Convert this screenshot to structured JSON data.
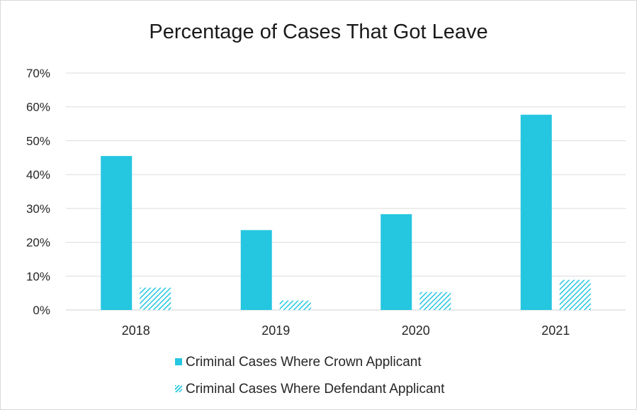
{
  "chart_data": {
    "type": "bar",
    "title": "Percentage of Cases That Got Leave",
    "categories": [
      "2018",
      "2019",
      "2020",
      "2021"
    ],
    "series": [
      {
        "name": "Criminal Cases Where Crown Applicant",
        "values": [
          45.5,
          23.6,
          28.3,
          57.7
        ],
        "style": "solid",
        "color": "#25c6e0"
      },
      {
        "name": "Criminal Cases Where Defendant Applicant",
        "values": [
          6.6,
          2.8,
          5.3,
          8.9
        ],
        "style": "hatched",
        "color": "#25c6e0"
      }
    ],
    "ylim": [
      0,
      70
    ],
    "yticks": [
      "0%",
      "10%",
      "20%",
      "30%",
      "40%",
      "50%",
      "60%",
      "70%"
    ],
    "xlabel": "",
    "ylabel": "",
    "grid": true,
    "legend_position": "bottom"
  }
}
